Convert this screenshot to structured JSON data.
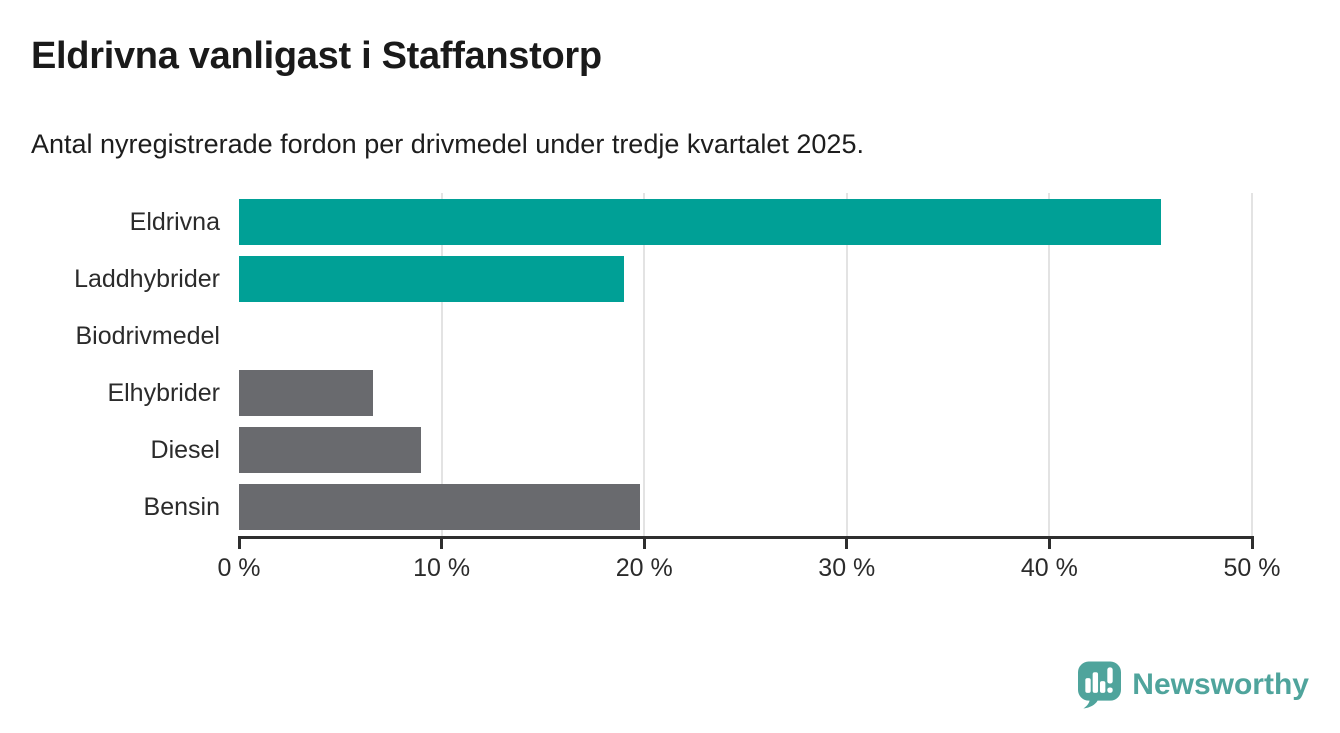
{
  "chart_data": {
    "type": "bar",
    "orientation": "horizontal",
    "title": "Eldrivna vanligast i Staffanstorp",
    "subtitle": "Antal nyregistrerade fordon per drivmedel under tredje kvartalet 2025.",
    "categories": [
      "Eldrivna",
      "Laddhybrider",
      "Biodrivmedel",
      "Elhybrider",
      "Diesel",
      "Bensin"
    ],
    "values": [
      45.5,
      19.0,
      0,
      6.6,
      9.0,
      19.8
    ],
    "unit": "%",
    "bar_colors": [
      "#00A096",
      "#00A096",
      "#696A6E",
      "#696A6E",
      "#696A6E",
      "#696A6E"
    ],
    "xlim": [
      0,
      50
    ],
    "xticks": [
      {
        "value": 0,
        "label": "0 %"
      },
      {
        "value": 10,
        "label": "10 %"
      },
      {
        "value": 20,
        "label": "20 %"
      },
      {
        "value": 30,
        "label": "30 %"
      },
      {
        "value": 40,
        "label": "40 %"
      },
      {
        "value": 50,
        "label": "50 %"
      }
    ],
    "grid": "vertical",
    "legend": "none"
  },
  "footer": {
    "brand": "Newsworthy",
    "brand_color": "#4FA49C",
    "icon": "speech-bubble-bar-chart-icon"
  },
  "colors": {
    "accent_teal": "#00A096",
    "neutral_gray": "#696A6E",
    "logo_teal": "#4FA49C",
    "axis": "#2E2E2E",
    "gridline": "#E3E3E3",
    "text": "#1D1D1D",
    "background": "#FFFFFF"
  }
}
